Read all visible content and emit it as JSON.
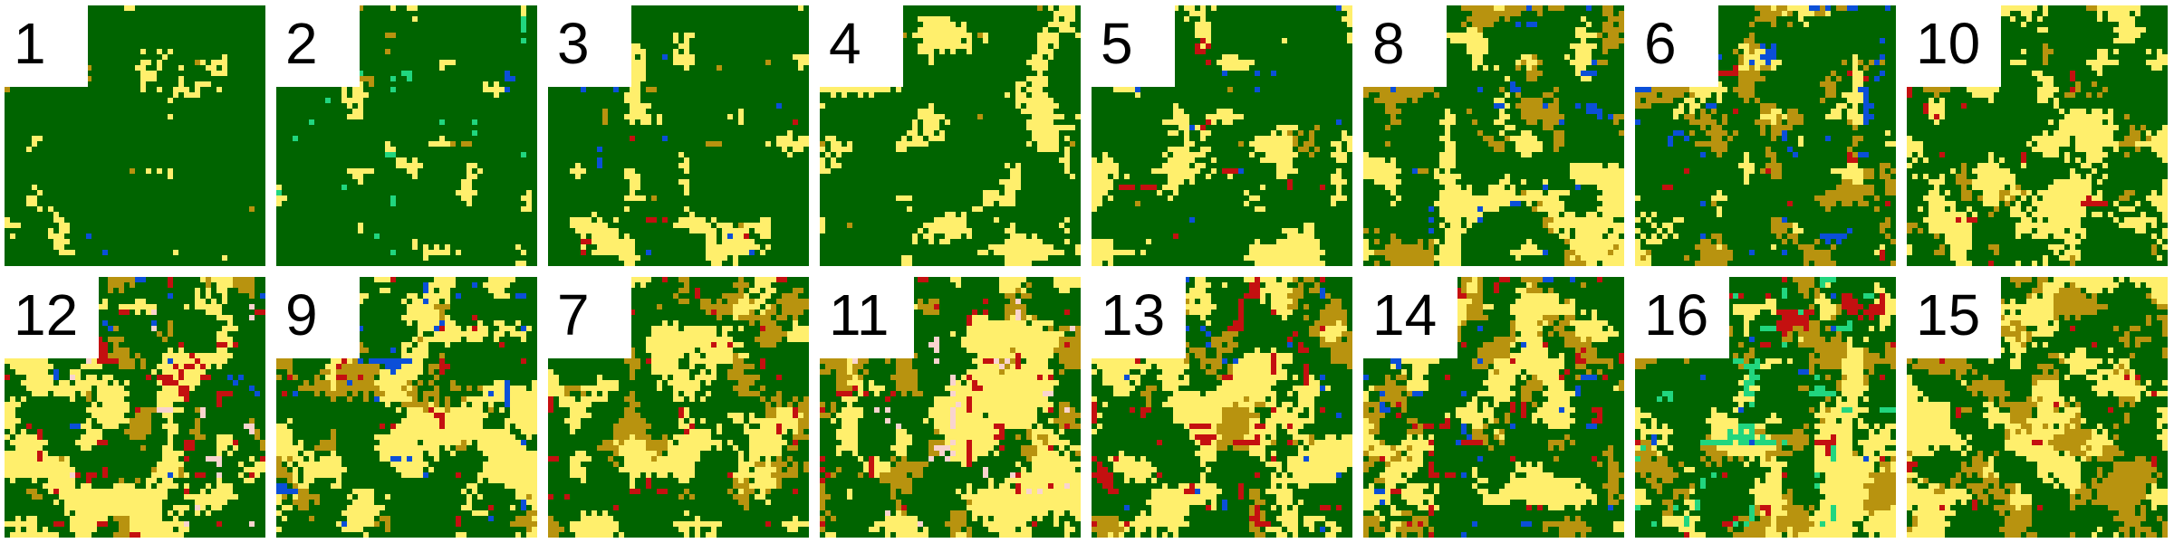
{
  "palette": {
    "forest": "#006400",
    "grass": "#ffef6c",
    "shrub": "#b8930f",
    "water": "#0b4fd8",
    "urban": "#c41010",
    "wetland": "#21d67f",
    "snow": "#f9d4cf",
    "background": "#ffffff",
    "label_text": "#000000"
  },
  "tiles": [
    {
      "label": "1",
      "seed": 11,
      "forest": 0.96,
      "grass": 0.04,
      "shrub": 0.003,
      "water": 0.002,
      "urban": 0.0,
      "wetland": 0.0,
      "snow": 0.0
    },
    {
      "label": "2",
      "seed": 23,
      "forest": 0.92,
      "grass": 0.05,
      "shrub": 0.01,
      "water": 0.002,
      "urban": 0.0,
      "wetland": 0.015,
      "snow": 0.0
    },
    {
      "label": "3",
      "seed": 37,
      "forest": 0.86,
      "grass": 0.12,
      "shrub": 0.01,
      "water": 0.005,
      "urban": 0.005,
      "wetland": 0.0,
      "snow": 0.0
    },
    {
      "label": "4",
      "seed": 41,
      "forest": 0.78,
      "grass": 0.21,
      "shrub": 0.005,
      "water": 0.0,
      "urban": 0.0,
      "wetland": 0.0,
      "snow": 0.0
    },
    {
      "label": "5",
      "seed": 53,
      "forest": 0.8,
      "grass": 0.17,
      "shrub": 0.01,
      "water": 0.005,
      "urban": 0.01,
      "wetland": 0.0,
      "snow": 0.0
    },
    {
      "label": "8",
      "seed": 67,
      "forest": 0.6,
      "grass": 0.22,
      "shrub": 0.16,
      "water": 0.02,
      "urban": 0.0,
      "wetland": 0.0,
      "snow": 0.0
    },
    {
      "label": "6",
      "seed": 71,
      "forest": 0.7,
      "grass": 0.08,
      "shrub": 0.18,
      "water": 0.03,
      "urban": 0.01,
      "wetland": 0.0,
      "snow": 0.0
    },
    {
      "label": "10",
      "seed": 83,
      "forest": 0.6,
      "grass": 0.33,
      "shrub": 0.06,
      "water": 0.0,
      "urban": 0.01,
      "wetland": 0.0,
      "snow": 0.0
    },
    {
      "label": "12",
      "seed": 97,
      "forest": 0.55,
      "grass": 0.3,
      "shrub": 0.09,
      "water": 0.01,
      "urban": 0.04,
      "wetland": 0.0,
      "snow": 0.01
    },
    {
      "label": "9",
      "seed": 101,
      "forest": 0.5,
      "grass": 0.32,
      "shrub": 0.14,
      "water": 0.025,
      "urban": 0.015,
      "wetland": 0.0,
      "snow": 0.0
    },
    {
      "label": "7",
      "seed": 113,
      "forest": 0.58,
      "grass": 0.25,
      "shrub": 0.15,
      "water": 0.0,
      "urban": 0.02,
      "wetland": 0.0,
      "snow": 0.0
    },
    {
      "label": "11",
      "seed": 127,
      "forest": 0.35,
      "grass": 0.38,
      "shrub": 0.22,
      "water": 0.0,
      "urban": 0.03,
      "wetland": 0.0,
      "snow": 0.02
    },
    {
      "label": "13",
      "seed": 131,
      "forest": 0.45,
      "grass": 0.33,
      "shrub": 0.16,
      "water": 0.01,
      "urban": 0.05,
      "wetland": 0.0,
      "snow": 0.0
    },
    {
      "label": "14",
      "seed": 149,
      "forest": 0.5,
      "grass": 0.26,
      "shrub": 0.19,
      "water": 0.02,
      "urban": 0.03,
      "wetland": 0.0,
      "snow": 0.0
    },
    {
      "label": "16",
      "seed": 157,
      "forest": 0.4,
      "grass": 0.26,
      "shrub": 0.25,
      "water": 0.005,
      "urban": 0.04,
      "wetland": 0.045,
      "snow": 0.0
    },
    {
      "label": "15",
      "seed": 163,
      "forest": 0.38,
      "grass": 0.28,
      "shrub": 0.33,
      "water": 0.0,
      "urban": 0.01,
      "wetland": 0.0,
      "snow": 0.0
    }
  ]
}
